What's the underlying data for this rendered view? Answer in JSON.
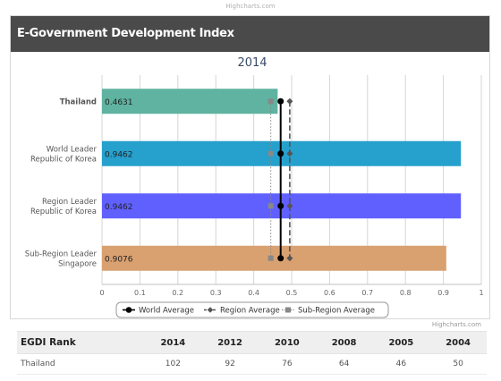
{
  "credit_top": "Highcharts.com",
  "credit_bottom": "Highcharts.com",
  "panel": {
    "title": "E-Government Development Index"
  },
  "chart_data": {
    "type": "bar",
    "title": "2014",
    "categories": [
      [
        "Thailand"
      ],
      [
        "World Leader",
        "Republic of Korea"
      ],
      [
        "Region Leader",
        "Republic of Korea"
      ],
      [
        "Sub-Region Leader",
        "Singapore"
      ]
    ],
    "values": [
      0.4631,
      0.9462,
      0.9462,
      0.9076
    ],
    "value_labels": [
      "0.4631",
      "0.9462",
      "0.9462",
      "0.9076"
    ],
    "bar_colors": [
      "#5fb3a0",
      "#26a0cc",
      "#6060ff",
      "#d9a070"
    ],
    "xlim": [
      0,
      1
    ],
    "ticks": [
      0,
      0.1,
      0.2,
      0.3,
      0.4,
      0.5,
      0.6,
      0.7,
      0.8,
      0.9,
      1
    ],
    "tick_labels": [
      "0",
      "0.1",
      "0.2",
      "0.3",
      "0.4",
      "0.5",
      "0.6",
      "0.7",
      "0.8",
      "0.9",
      "1"
    ],
    "grid": true,
    "reference_lines": [
      {
        "name": "World Average",
        "value": 0.471,
        "color": "#000000",
        "marker": "circle",
        "dash": "solid"
      },
      {
        "name": "Region Average",
        "value": 0.495,
        "color": "#555555",
        "marker": "diamond",
        "dash": "dashed"
      },
      {
        "name": "Sub-Region Average",
        "value": 0.445,
        "color": "#888888",
        "marker": "square",
        "dash": "dotted"
      }
    ],
    "legend_position": "bottom-center"
  },
  "table": {
    "headers": [
      "EGDI Rank",
      "2014",
      "2012",
      "2010",
      "2008",
      "2005",
      "2004"
    ],
    "rows": [
      [
        "Thailand",
        "102",
        "92",
        "76",
        "64",
        "46",
        "50"
      ]
    ]
  }
}
